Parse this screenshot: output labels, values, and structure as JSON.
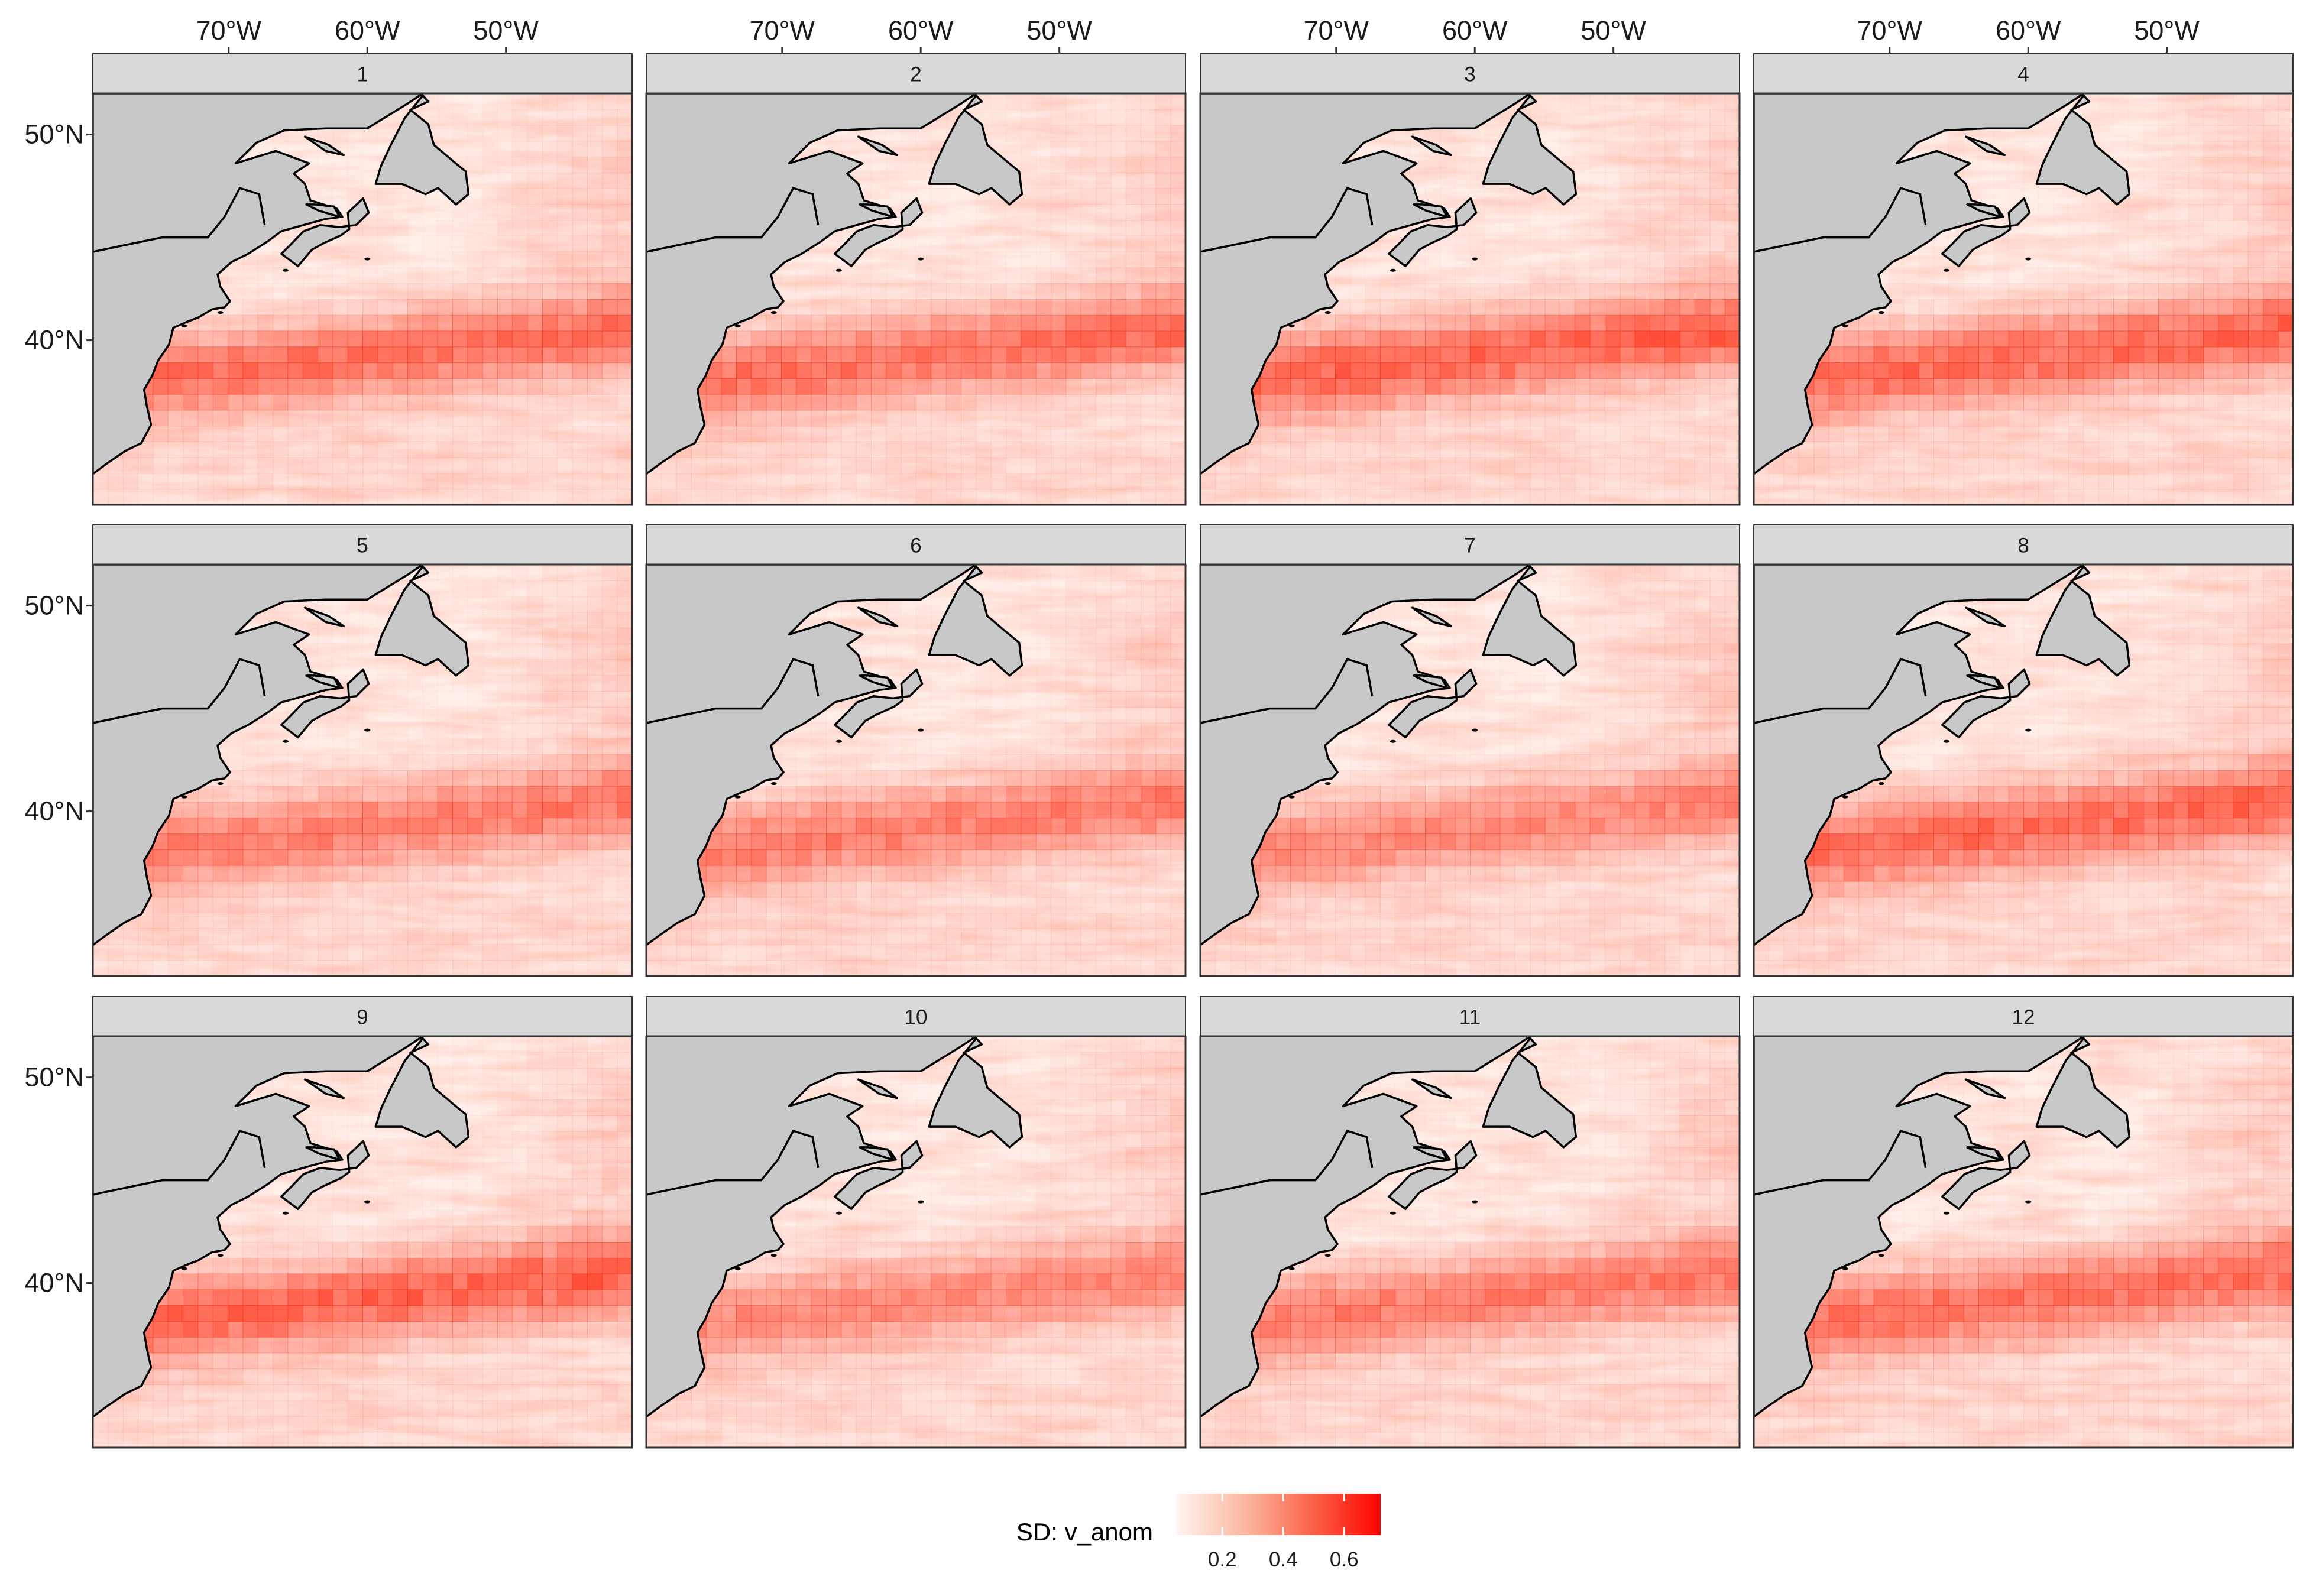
{
  "figure": {
    "panels": [
      "1",
      "2",
      "3",
      "4",
      "5",
      "6",
      "7",
      "8",
      "9",
      "10",
      "11",
      "12"
    ],
    "longitude_ticks": [
      "70°W",
      "60°W",
      "50°W"
    ],
    "latitude_ticks": [
      "50°N",
      "40°N"
    ],
    "colors": {
      "strip_fill": "#d9d9d9",
      "land_fill": "#c8c8c8",
      "coast_stroke": "#000000",
      "scale_low": "#fff5f0",
      "scale_high": "#ff0000"
    }
  },
  "legend": {
    "title": "SD: v_anom",
    "ticks": [
      "0.2",
      "0.4",
      "0.6"
    ]
  },
  "chart_data": {
    "type": "heatmap",
    "facet_by": "month",
    "facets": [
      1,
      2,
      3,
      4,
      5,
      6,
      7,
      8,
      9,
      10,
      11,
      12
    ],
    "variable": "SD: v_anom",
    "x_ticks_deg": [
      -70,
      -60,
      -50
    ],
    "y_ticks_deg": [
      50,
      40
    ],
    "xlim_deg": [
      -79.8,
      -40.9
    ],
    "ylim_deg": [
      32.0,
      52.0
    ],
    "color_range": [
      0.05,
      0.72
    ],
    "color_ticks": [
      0.2,
      0.4,
      0.6
    ],
    "peak_band": {
      "description": "High SD along Gulf Stream band near 37–41°N",
      "approx_max_by_month": [
        0.55,
        0.55,
        0.6,
        0.58,
        0.5,
        0.5,
        0.45,
        0.58,
        0.6,
        0.45,
        0.5,
        0.55
      ]
    },
    "grid": false
  }
}
